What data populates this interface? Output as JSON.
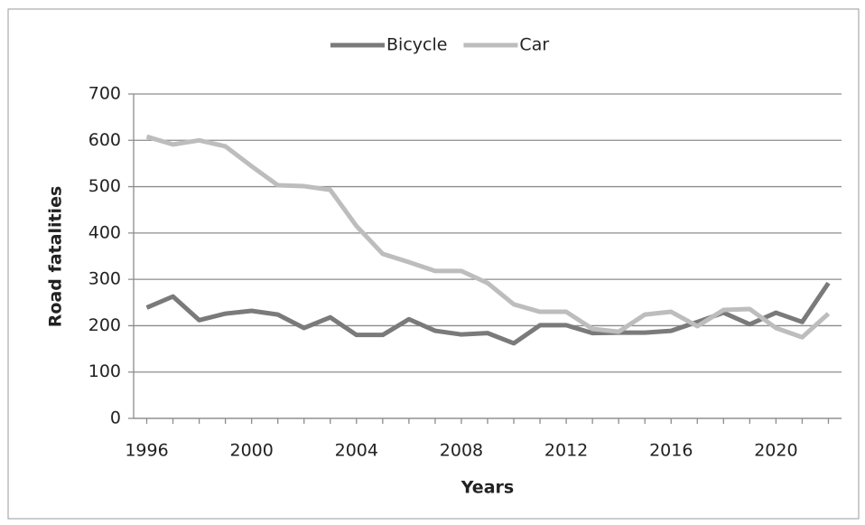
{
  "chart_data": {
    "type": "line",
    "x_label": "Years",
    "y_label": "Road fatalities",
    "x": [
      1996,
      1997,
      1998,
      1999,
      2000,
      2001,
      2002,
      2003,
      2004,
      2005,
      2006,
      2007,
      2008,
      2009,
      2010,
      2011,
      2012,
      2013,
      2014,
      2015,
      2016,
      2017,
      2018,
      2019,
      2020,
      2021,
      2022
    ],
    "series": [
      {
        "name": "Bicycle",
        "color": "#7a7a7a",
        "values": [
          239,
          263,
          212,
          226,
          232,
          224,
          195,
          218,
          180,
          180,
          214,
          189,
          181,
          184,
          162,
          201,
          201,
          184,
          185,
          185,
          189,
          208,
          228,
          203,
          228,
          208,
          292
        ]
      },
      {
        "name": "Car",
        "color": "#bdbdbd",
        "values": [
          608,
          591,
          600,
          587,
          544,
          503,
          501,
          493,
          415,
          355,
          337,
          318,
          318,
          292,
          246,
          230,
          230,
          193,
          187,
          224,
          230,
          199,
          234,
          236,
          195,
          175,
          226
        ]
      }
    ],
    "xlim": [
      1995.5,
      2022.5
    ],
    "xticks": [
      1996,
      2000,
      2004,
      2008,
      2012,
      2016,
      2020
    ],
    "ylim": [
      0,
      700
    ],
    "yticks": [
      0,
      100,
      200,
      300,
      400,
      500,
      600,
      700
    ],
    "grid": true,
    "legend": "top"
  }
}
